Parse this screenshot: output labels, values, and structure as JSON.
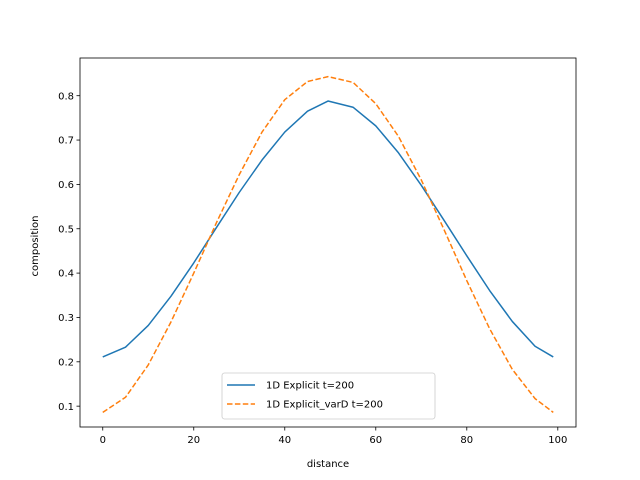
{
  "chart_data": {
    "type": "line",
    "title": "",
    "xlabel": "distance",
    "ylabel": "composition",
    "xlim": [
      -5,
      104
    ],
    "ylim": [
      0.053,
      0.885
    ],
    "xticks": [
      0,
      20,
      40,
      60,
      80,
      100
    ],
    "xtick_labels": [
      "0",
      "20",
      "40",
      "60",
      "80",
      "100"
    ],
    "yticks": [
      0.1,
      0.2,
      0.3,
      0.4,
      0.5,
      0.6,
      0.7,
      0.8
    ],
    "ytick_labels": [
      "0.1",
      "0.2",
      "0.3",
      "0.4",
      "0.5",
      "0.6",
      "0.7",
      "0.8"
    ],
    "grid": false,
    "legend_position": "lower-center",
    "series": [
      {
        "name": "1D Explicit t=200",
        "style": "solid",
        "color": "#1f77b4",
        "x": [
          0,
          5,
          10,
          15,
          20,
          25,
          30,
          35,
          40,
          45,
          49.5,
          55,
          60,
          65,
          70,
          75,
          80,
          85,
          90,
          95,
          99
        ],
        "y": [
          0.211,
          0.233,
          0.282,
          0.348,
          0.423,
          0.503,
          0.582,
          0.655,
          0.718,
          0.765,
          0.788,
          0.774,
          0.732,
          0.671,
          0.598,
          0.519,
          0.439,
          0.361,
          0.291,
          0.235,
          0.211
        ]
      },
      {
        "name": "1D Explicit_varD t=200",
        "style": "dashed",
        "color": "#ff7f0e",
        "x": [
          0,
          5,
          10,
          15,
          20,
          25,
          30,
          35,
          40,
          45,
          49.5,
          55,
          60,
          65,
          70,
          75,
          80,
          85,
          90,
          95,
          99
        ],
        "y": [
          0.086,
          0.12,
          0.193,
          0.29,
          0.4,
          0.514,
          0.622,
          0.718,
          0.791,
          0.832,
          0.843,
          0.83,
          0.782,
          0.708,
          0.61,
          0.498,
          0.383,
          0.275,
          0.183,
          0.117,
          0.086
        ]
      }
    ]
  }
}
